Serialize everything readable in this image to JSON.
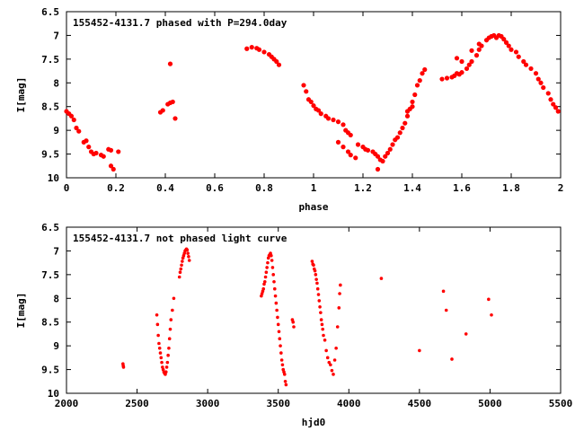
{
  "chart_data": [
    {
      "type": "scatter",
      "title": "155452-4131.7 phased with P=294.0day",
      "xlabel": "phase",
      "ylabel": "I[mag]",
      "xlim": [
        0,
        2
      ],
      "ylim": [
        6.5,
        10
      ],
      "y_inverted": true,
      "x_ticks": [
        "0",
        "0.2",
        "0.4",
        "0.6",
        "0.8",
        "1",
        "1.2",
        "1.4",
        "1.6",
        "1.8",
        "2"
      ],
      "y_ticks": [
        "6.5",
        "7",
        "7.5",
        "8",
        "8.5",
        "9",
        "9.5",
        "10"
      ],
      "color": "#ff0000",
      "series": [
        {
          "points": [
            [
              0.0,
              8.6
            ],
            [
              0.01,
              8.65
            ],
            [
              0.02,
              8.7
            ],
            [
              0.03,
              8.78
            ],
            [
              0.04,
              8.95
            ],
            [
              0.05,
              9.02
            ],
            [
              0.07,
              9.25
            ],
            [
              0.08,
              9.22
            ],
            [
              0.09,
              9.35
            ],
            [
              0.1,
              9.45
            ],
            [
              0.11,
              9.5
            ],
            [
              0.12,
              9.48
            ],
            [
              0.14,
              9.52
            ],
            [
              0.15,
              9.55
            ],
            [
              0.17,
              9.4
            ],
            [
              0.18,
              9.42
            ],
            [
              0.18,
              9.75
            ],
            [
              0.19,
              9.82
            ],
            [
              0.21,
              9.45
            ],
            [
              0.38,
              8.62
            ],
            [
              0.39,
              8.58
            ],
            [
              0.41,
              8.45
            ],
            [
              0.42,
              8.42
            ],
            [
              0.43,
              8.4
            ],
            [
              0.42,
              7.6
            ],
            [
              0.44,
              8.75
            ],
            [
              0.73,
              7.28
            ],
            [
              0.75,
              7.25
            ],
            [
              0.77,
              7.27
            ],
            [
              0.78,
              7.3
            ],
            [
              0.8,
              7.35
            ],
            [
              0.82,
              7.4
            ],
            [
              0.83,
              7.45
            ],
            [
              0.84,
              7.5
            ],
            [
              0.85,
              7.55
            ],
            [
              0.86,
              7.62
            ],
            [
              0.96,
              8.05
            ],
            [
              0.97,
              8.18
            ],
            [
              0.98,
              8.35
            ],
            [
              0.99,
              8.4
            ],
            [
              1.0,
              8.48
            ],
            [
              1.01,
              8.55
            ],
            [
              1.02,
              8.58
            ],
            [
              1.03,
              8.65
            ],
            [
              1.05,
              8.7
            ],
            [
              1.06,
              8.75
            ],
            [
              1.08,
              8.78
            ],
            [
              1.1,
              8.82
            ],
            [
              1.12,
              8.88
            ],
            [
              1.13,
              9.0
            ],
            [
              1.14,
              9.05
            ],
            [
              1.15,
              9.1
            ],
            [
              1.1,
              9.25
            ],
            [
              1.12,
              9.35
            ],
            [
              1.14,
              9.45
            ],
            [
              1.15,
              9.52
            ],
            [
              1.17,
              9.58
            ],
            [
              1.18,
              9.3
            ],
            [
              1.2,
              9.35
            ],
            [
              1.21,
              9.4
            ],
            [
              1.22,
              9.42
            ],
            [
              1.24,
              9.45
            ],
            [
              1.25,
              9.5
            ],
            [
              1.26,
              9.55
            ],
            [
              1.27,
              9.62
            ],
            [
              1.28,
              9.65
            ],
            [
              1.29,
              9.55
            ],
            [
              1.3,
              9.48
            ],
            [
              1.31,
              9.4
            ],
            [
              1.32,
              9.3
            ],
            [
              1.33,
              9.2
            ],
            [
              1.34,
              9.15
            ],
            [
              1.35,
              9.05
            ],
            [
              1.36,
              8.95
            ],
            [
              1.37,
              8.85
            ],
            [
              1.38,
              8.7
            ],
            [
              1.39,
              8.55
            ],
            [
              1.4,
              8.4
            ],
            [
              1.41,
              8.25
            ],
            [
              1.42,
              8.05
            ],
            [
              1.43,
              7.95
            ],
            [
              1.44,
              7.8
            ],
            [
              1.26,
              9.82
            ],
            [
              1.38,
              8.6
            ],
            [
              1.4,
              8.5
            ],
            [
              1.45,
              7.72
            ],
            [
              1.52,
              7.92
            ],
            [
              1.54,
              7.9
            ],
            [
              1.56,
              7.88
            ],
            [
              1.57,
              7.85
            ],
            [
              1.58,
              7.8
            ],
            [
              1.59,
              7.82
            ],
            [
              1.6,
              7.78
            ],
            [
              1.62,
              7.7
            ],
            [
              1.63,
              7.62
            ],
            [
              1.64,
              7.55
            ],
            [
              1.66,
              7.42
            ],
            [
              1.67,
              7.3
            ],
            [
              1.68,
              7.22
            ],
            [
              1.7,
              7.1
            ],
            [
              1.71,
              7.05
            ],
            [
              1.72,
              7.02
            ],
            [
              1.73,
              7.0
            ],
            [
              1.74,
              7.05
            ],
            [
              1.75,
              7.0
            ],
            [
              1.76,
              7.02
            ],
            [
              1.77,
              7.08
            ],
            [
              1.78,
              7.15
            ],
            [
              1.79,
              7.22
            ],
            [
              1.8,
              7.3
            ],
            [
              1.82,
              7.35
            ],
            [
              1.83,
              7.45
            ],
            [
              1.85,
              7.55
            ],
            [
              1.86,
              7.62
            ],
            [
              1.88,
              7.7
            ],
            [
              1.9,
              7.8
            ],
            [
              1.91,
              7.92
            ],
            [
              1.92,
              8.0
            ],
            [
              1.93,
              8.1
            ],
            [
              1.95,
              8.22
            ],
            [
              1.96,
              8.35
            ],
            [
              1.97,
              8.45
            ],
            [
              1.98,
              8.52
            ],
            [
              1.99,
              8.6
            ],
            [
              1.58,
              7.48
            ],
            [
              1.6,
              7.55
            ],
            [
              1.64,
              7.32
            ],
            [
              1.67,
              7.18
            ]
          ]
        }
      ]
    },
    {
      "type": "scatter",
      "title": "155452-4131.7 not phased light curve",
      "xlabel": "hjd0",
      "ylabel": "I[mag]",
      "xlim": [
        2000,
        5500
      ],
      "ylim": [
        6.5,
        10
      ],
      "y_inverted": true,
      "x_ticks": [
        "2000",
        "2500",
        "3000",
        "3500",
        "4000",
        "4500",
        "5000",
        "5500"
      ],
      "y_ticks": [
        "6.5",
        "7",
        "7.5",
        "8",
        "8.5",
        "9",
        "9.5",
        "10"
      ],
      "color": "#ff0000",
      "series": [
        {
          "points": [
            [
              2400,
              9.38
            ],
            [
              2402,
              9.42
            ],
            [
              2404,
              9.45
            ],
            [
              2640,
              8.35
            ],
            [
              2645,
              8.55
            ],
            [
              2650,
              8.78
            ],
            [
              2655,
              8.95
            ],
            [
              2660,
              9.05
            ],
            [
              2665,
              9.15
            ],
            [
              2670,
              9.25
            ],
            [
              2675,
              9.35
            ],
            [
              2680,
              9.45
            ],
            [
              2685,
              9.5
            ],
            [
              2690,
              9.55
            ],
            [
              2695,
              9.58
            ],
            [
              2700,
              9.6
            ],
            [
              2705,
              9.55
            ],
            [
              2710,
              9.45
            ],
            [
              2715,
              9.35
            ],
            [
              2720,
              9.2
            ],
            [
              2725,
              9.05
            ],
            [
              2730,
              8.85
            ],
            [
              2735,
              8.65
            ],
            [
              2740,
              8.45
            ],
            [
              2750,
              8.25
            ],
            [
              2760,
              8.0
            ],
            [
              2800,
              7.55
            ],
            [
              2805,
              7.45
            ],
            [
              2810,
              7.38
            ],
            [
              2815,
              7.3
            ],
            [
              2820,
              7.22
            ],
            [
              2825,
              7.15
            ],
            [
              2830,
              7.1
            ],
            [
              2835,
              7.05
            ],
            [
              2840,
              7.0
            ],
            [
              2845,
              6.98
            ],
            [
              2850,
              6.96
            ],
            [
              2855,
              6.98
            ],
            [
              2860,
              7.05
            ],
            [
              2865,
              7.12
            ],
            [
              2870,
              7.2
            ],
            [
              3380,
              7.95
            ],
            [
              3385,
              7.9
            ],
            [
              3390,
              7.85
            ],
            [
              3395,
              7.8
            ],
            [
              3400,
              7.7
            ],
            [
              3405,
              7.65
            ],
            [
              3410,
              7.55
            ],
            [
              3415,
              7.45
            ],
            [
              3420,
              7.35
            ],
            [
              3425,
              7.25
            ],
            [
              3430,
              7.15
            ],
            [
              3435,
              7.1
            ],
            [
              3440,
              7.08
            ],
            [
              3445,
              7.05
            ],
            [
              3450,
              7.1
            ],
            [
              3455,
              7.2
            ],
            [
              3460,
              7.35
            ],
            [
              3465,
              7.5
            ],
            [
              3470,
              7.65
            ],
            [
              3475,
              7.8
            ],
            [
              3480,
              7.95
            ],
            [
              3485,
              8.1
            ],
            [
              3490,
              8.25
            ],
            [
              3495,
              8.4
            ],
            [
              3500,
              8.55
            ],
            [
              3505,
              8.7
            ],
            [
              3510,
              8.85
            ],
            [
              3515,
              9.0
            ],
            [
              3520,
              9.15
            ],
            [
              3525,
              9.3
            ],
            [
              3530,
              9.4
            ],
            [
              3535,
              9.5
            ],
            [
              3540,
              9.55
            ],
            [
              3545,
              9.6
            ],
            [
              3550,
              9.75
            ],
            [
              3555,
              9.82
            ],
            [
              3600,
              8.45
            ],
            [
              3605,
              8.5
            ],
            [
              3610,
              8.6
            ],
            [
              3740,
              7.22
            ],
            [
              3745,
              7.28
            ],
            [
              3750,
              7.3
            ],
            [
              3755,
              7.38
            ],
            [
              3760,
              7.42
            ],
            [
              3765,
              7.5
            ],
            [
              3770,
              7.6
            ],
            [
              3775,
              7.68
            ],
            [
              3780,
              7.8
            ],
            [
              3785,
              7.92
            ],
            [
              3790,
              8.05
            ],
            [
              3795,
              8.18
            ],
            [
              3800,
              8.3
            ],
            [
              3805,
              8.45
            ],
            [
              3810,
              8.55
            ],
            [
              3815,
              8.65
            ],
            [
              3820,
              8.78
            ],
            [
              3830,
              8.88
            ],
            [
              3840,
              9.1
            ],
            [
              3850,
              9.25
            ],
            [
              3860,
              9.35
            ],
            [
              3870,
              9.4
            ],
            [
              3880,
              9.52
            ],
            [
              3890,
              9.6
            ],
            [
              3900,
              9.3
            ],
            [
              3910,
              9.05
            ],
            [
              3920,
              8.6
            ],
            [
              3930,
              8.2
            ],
            [
              3940,
              7.72
            ],
            [
              3935,
              7.9
            ],
            [
              4230,
              7.58
            ],
            [
              4500,
              9.1
            ],
            [
              4670,
              7.85
            ],
            [
              4690,
              8.25
            ],
            [
              4730,
              9.28
            ],
            [
              4830,
              8.75
            ],
            [
              4990,
              8.02
            ],
            [
              5010,
              8.35
            ]
          ]
        }
      ]
    }
  ]
}
